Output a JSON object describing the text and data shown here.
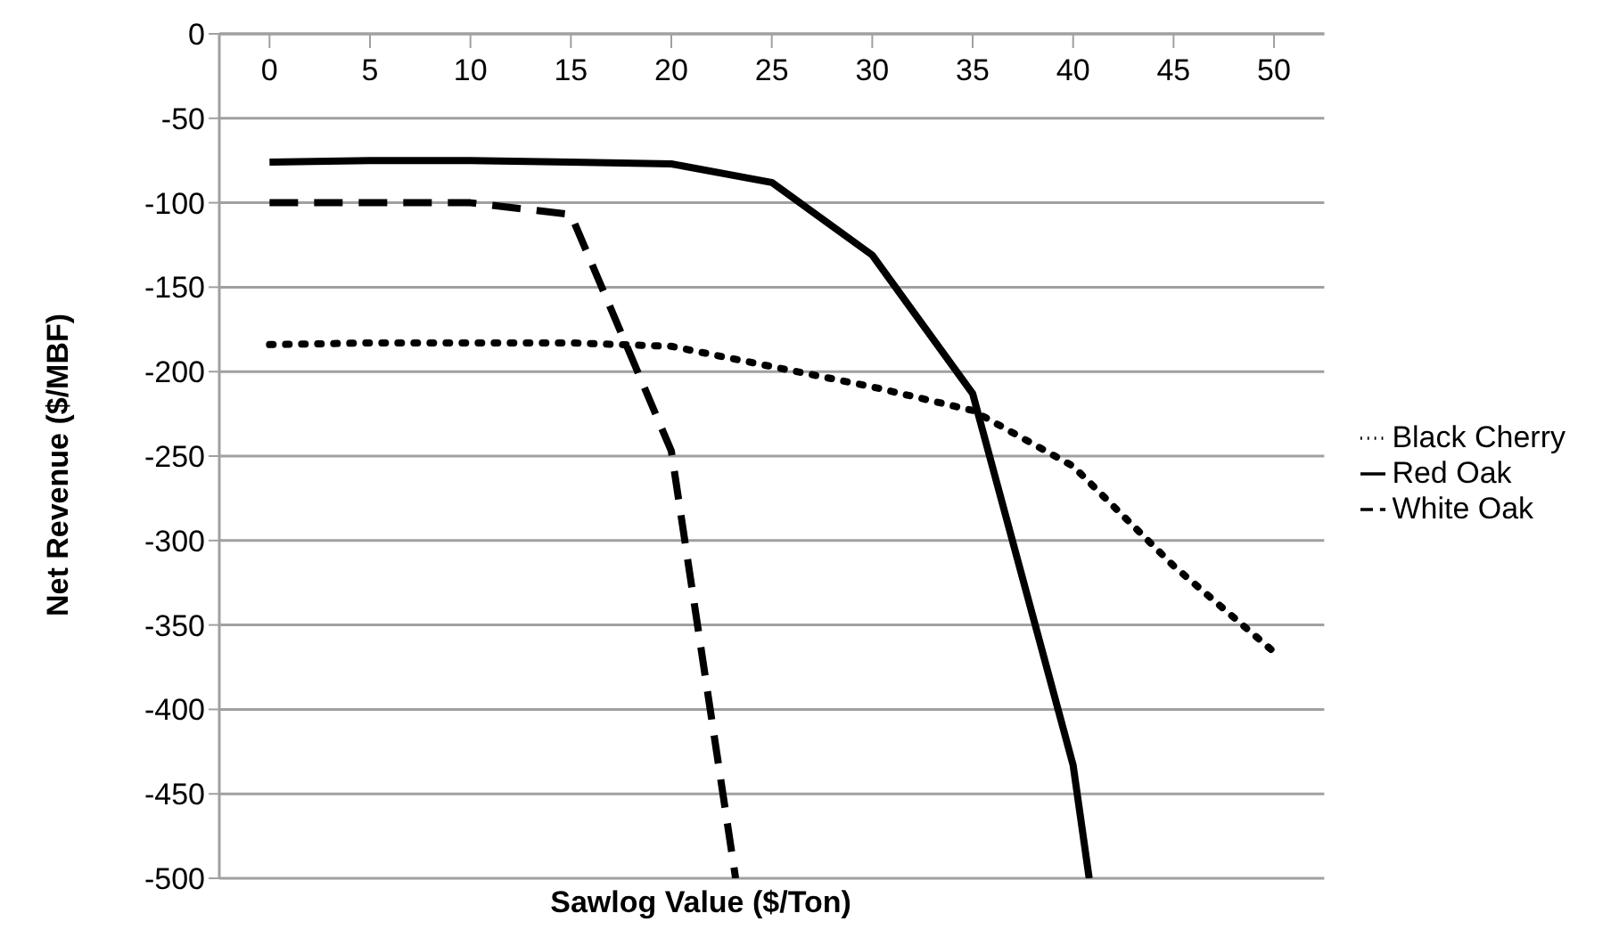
{
  "chart_data": {
    "type": "line",
    "xlabel": "Sawlog Value ($/Ton)",
    "ylabel": "Net Revenue ($/MBF)",
    "xlim": [
      -2.5,
      52.5
    ],
    "xticks": [
      0,
      5,
      10,
      15,
      20,
      25,
      30,
      35,
      40,
      45,
      50
    ],
    "ylim": [
      -500,
      0
    ],
    "yticks": [
      -500,
      -450,
      -400,
      -350,
      -300,
      -250,
      -200,
      -150,
      -100,
      -50,
      0
    ],
    "grid": "y",
    "legend": "right",
    "marker": "none",
    "series": [
      {
        "name": "White Oak",
        "color": "#000000",
        "line_style": "dashed",
        "x": [
          0,
          5,
          10,
          15,
          20,
          23.2
        ],
        "values": [
          -100,
          -100,
          -100,
          -107,
          -247,
          -500
        ]
      },
      {
        "name": "Black Cherry",
        "color": "#000000",
        "line_style": "dotted",
        "x": [
          0,
          5,
          10,
          15,
          20,
          25,
          30,
          35,
          40,
          45,
          50
        ],
        "values": [
          -184,
          -183,
          -183,
          -183,
          -185,
          -197,
          -209,
          -223,
          -256,
          -315,
          -366
        ]
      },
      {
        "name": "Red Oak",
        "color": "#000000",
        "line_style": "solid",
        "x": [
          0,
          5,
          10,
          15,
          20,
          25,
          30,
          35,
          40,
          40.8
        ],
        "values": [
          -76,
          -75,
          -75,
          -76,
          -77,
          -88,
          -131,
          -213,
          -433,
          -500
        ]
      }
    ]
  }
}
